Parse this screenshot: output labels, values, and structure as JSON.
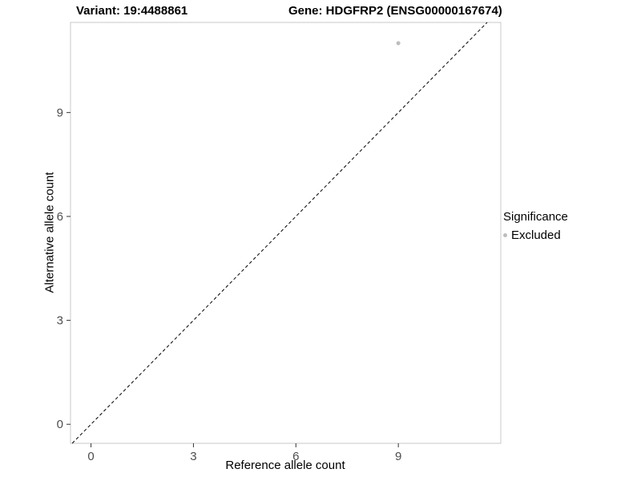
{
  "header": {
    "title_left": "Variant: 19:4488861",
    "title_right": "Gene: HDGFRP2 (ENSG00000167674)"
  },
  "legend": {
    "title": "Significance",
    "items": [
      {
        "label": "Excluded",
        "color": "#bdbdbd",
        "marker": "dot-icon"
      }
    ]
  },
  "chart_data": {
    "type": "scatter",
    "title": "Variant: 19:4488861 / Gene: HDGFRP2 (ENSG00000167674)",
    "xlabel": "Reference allele count",
    "ylabel": "Alternative allele count",
    "xlim": [
      -0.6,
      12.0
    ],
    "ylim": [
      -0.55,
      11.6
    ],
    "xticks": [
      0,
      3,
      6,
      9
    ],
    "yticks": [
      0,
      3,
      6,
      9
    ],
    "grid": false,
    "legend_position": "right",
    "series": [
      {
        "name": "Excluded",
        "color": "#bdbdbd",
        "point_radius": 2.5,
        "points": [
          {
            "x": 9,
            "y": 11
          }
        ]
      }
    ],
    "reference_line": {
      "kind": "identity y=x",
      "style": "dashed",
      "color": "#000000"
    },
    "panel": {
      "background": "#ffffff",
      "border": "#c8c8c8"
    },
    "tick_label_color": "#4d4d4d",
    "tick_mark_color": "#333333"
  }
}
